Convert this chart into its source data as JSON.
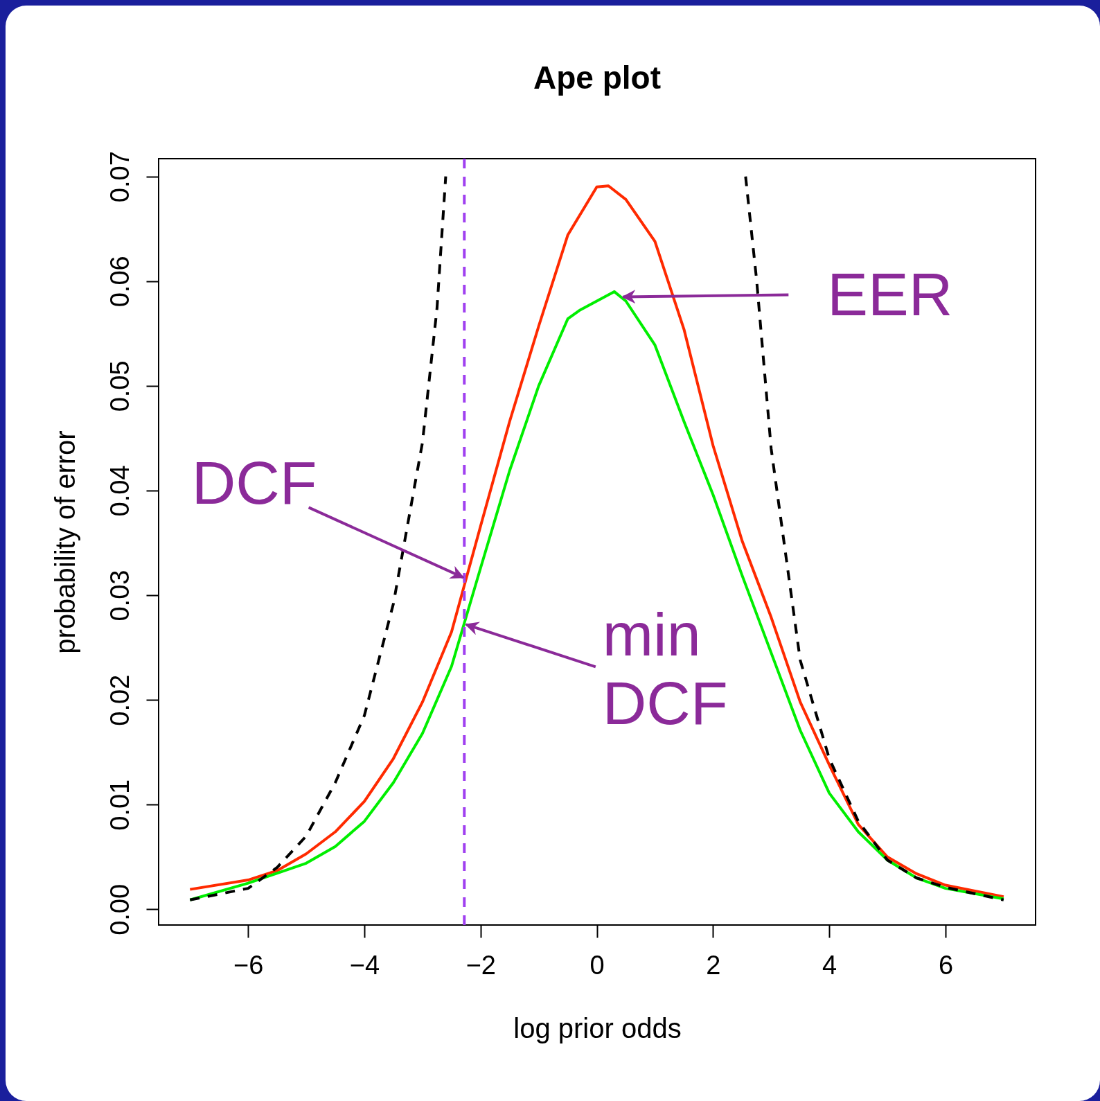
{
  "chart_data": {
    "type": "line",
    "title": "Ape plot",
    "xlabel": "log prior odds",
    "ylabel": "probability of error",
    "xlim": [
      -7.54,
      7.55
    ],
    "ylim": [
      -0.0015,
      0.0717
    ],
    "xticks": [
      -6,
      -4,
      -2,
      0,
      2,
      4,
      6
    ],
    "yticks": [
      {
        "value": 0,
        "label": "0.00"
      },
      {
        "value": 0.01,
        "label": "0.01"
      },
      {
        "value": 0.02,
        "label": "0.02"
      },
      {
        "value": 0.03,
        "label": "0.03"
      },
      {
        "value": 0.04,
        "label": "0.04"
      },
      {
        "value": 0.05,
        "label": "0.05"
      },
      {
        "value": 0.06,
        "label": "0.06"
      },
      {
        "value": 0.07,
        "label": "0.07"
      }
    ],
    "grid": false,
    "marker": "none",
    "series": [
      {
        "color": "#ff2a00",
        "line_style": "solid",
        "x": [
          -7,
          -6,
          -5.5,
          -5,
          -4.5,
          -4,
          -3.5,
          -3,
          -2.5,
          -2,
          -1.5,
          -1,
          -0.5,
          0,
          0.2,
          0.5,
          1,
          1.5,
          2,
          2.5,
          3,
          3.5,
          4,
          4.5,
          5,
          5.5,
          6,
          7
        ],
        "values": [
          0.0019,
          0.0028,
          0.0037,
          0.0053,
          0.0074,
          0.0103,
          0.0144,
          0.0198,
          0.0265,
          0.0366,
          0.0466,
          0.0557,
          0.0644,
          0.069,
          0.0691,
          0.0678,
          0.0638,
          0.0554,
          0.0443,
          0.0352,
          0.0279,
          0.0198,
          0.0138,
          0.0081,
          0.005,
          0.0034,
          0.0023,
          0.0012
        ]
      },
      {
        "color": "#00ee00",
        "line_style": "solid",
        "x": [
          -7,
          -6,
          -5,
          -4.5,
          -4,
          -3.5,
          -3,
          -2.5,
          -2,
          -1.5,
          -1,
          -0.5,
          -0.3,
          0.3,
          0.5,
          1,
          1.5,
          2,
          2.5,
          3,
          3.5,
          4,
          4.5,
          5,
          5.5,
          6,
          7
        ],
        "values": [
          0.0009,
          0.0025,
          0.0044,
          0.006,
          0.0084,
          0.0121,
          0.0168,
          0.0232,
          0.0326,
          0.0419,
          0.05,
          0.0564,
          0.0572,
          0.059,
          0.0581,
          0.0539,
          0.0466,
          0.0396,
          0.0319,
          0.0245,
          0.0171,
          0.0111,
          0.0074,
          0.0047,
          0.003,
          0.002,
          0.001
        ]
      },
      {
        "color": "#000000",
        "line_style": "dashed",
        "x": [
          -7,
          -6,
          -5.5,
          -5,
          -4.5,
          -4,
          -3.5,
          -3,
          -2.75,
          -2.6,
          0,
          2.56,
          2.75,
          3,
          3.5,
          4,
          4.5,
          5,
          5.5,
          6,
          7
        ],
        "values": [
          0.0009,
          0.002,
          0.004,
          0.007,
          0.0121,
          0.0185,
          0.0292,
          0.0446,
          0.0574,
          0.07,
          null,
          0.07,
          0.0601,
          0.044,
          0.0238,
          0.0144,
          0.0084,
          0.0047,
          0.003,
          0.0021,
          0.0009
        ]
      }
    ],
    "ref_lines": [
      {
        "axis": "x",
        "value": -2.28,
        "color": "#a040f0",
        "line_style": "dashed"
      }
    ],
    "annotations": [
      {
        "text": "EER",
        "x": 0.45,
        "y": 0.0585
      },
      {
        "text": "DCF",
        "x": -2.3,
        "y": 0.0317
      },
      {
        "text": "min DCF",
        "x": -2.25,
        "y": 0.0272
      }
    ]
  }
}
